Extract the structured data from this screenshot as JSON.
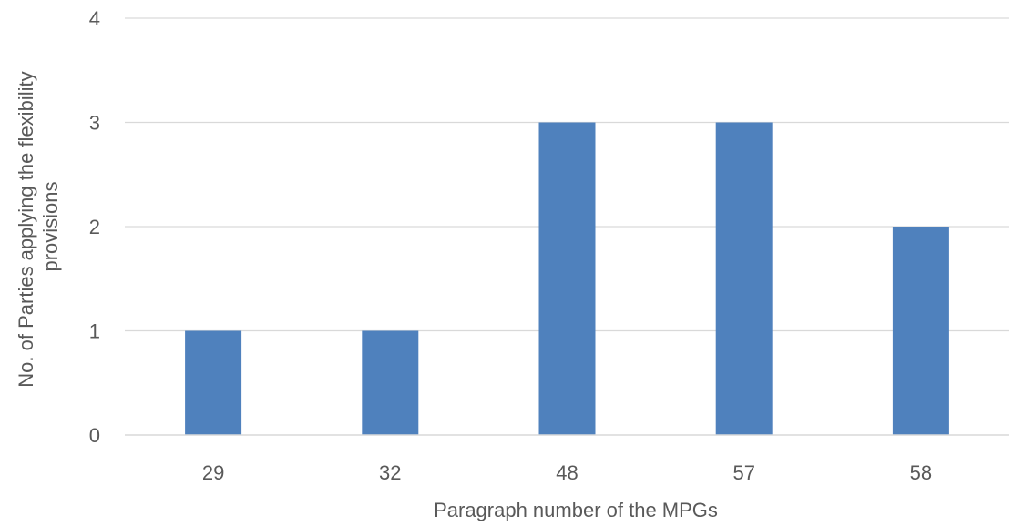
{
  "chart_data": {
    "type": "bar",
    "categories": [
      "29",
      "32",
      "48",
      "57",
      "58"
    ],
    "values": [
      1,
      1,
      3,
      3,
      2
    ],
    "xlabel": "Paragraph number of the MPGs",
    "ylabel": [
      "No. of Parties applying the flexibility",
      "provisions"
    ],
    "ylim": [
      0,
      4
    ],
    "yticks": [
      0,
      1,
      2,
      3,
      4
    ],
    "grid": true,
    "colors": {
      "bar": "#4f81bd",
      "grid": "#d9d9d9",
      "axis": "#d9d9d9",
      "text": "#595959"
    }
  }
}
